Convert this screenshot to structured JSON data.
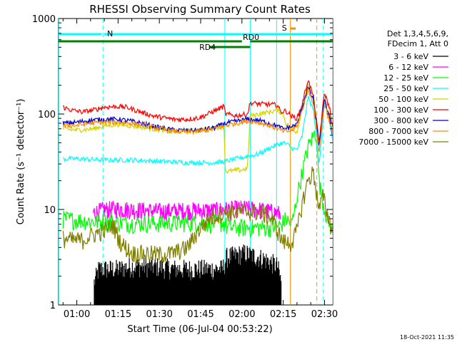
{
  "chart_data": {
    "type": "line",
    "title": "RHESSI Observing Summary Count Rates",
    "xlabel": "Start Time (06-Jul-04 00:53:22)",
    "ylabel": "Count Rate (s⁻¹ detector⁻¹)",
    "yscale": "log",
    "ylim": [
      1,
      1000
    ],
    "xlim": [
      53.37,
      153.0
    ],
    "x_units": "minutes after 00:00 UT",
    "x_ticks": [
      {
        "value": 60,
        "label": "01:00"
      },
      {
        "value": 75,
        "label": "01:15"
      },
      {
        "value": 90,
        "label": "01:30"
      },
      {
        "value": 105,
        "label": "01:45"
      },
      {
        "value": 120,
        "label": "02:00"
      },
      {
        "value": 135,
        "label": "02:15"
      },
      {
        "value": 150,
        "label": "02:30"
      }
    ],
    "y_ticks": [
      {
        "value": 1,
        "label": "1"
      },
      {
        "value": 10,
        "label": "10"
      },
      {
        "value": 100,
        "label": "100"
      },
      {
        "value": 1000,
        "label": "1000"
      }
    ],
    "legend": {
      "header": [
        "Det 1,3,4,5,6,9,",
        "FDecim 1, Att 0"
      ],
      "position": "right"
    },
    "series": [
      {
        "name": "3 - 6 keV",
        "color": "#000000",
        "style": "noisy",
        "x": [
          53.4,
          58.0,
          60.0,
          66.0,
          68.0,
          75.0,
          80.0,
          88.0,
          96.0,
          104.0,
          110.0,
          113.0,
          114.5,
          118.0,
          121.0,
          126.0,
          130.0,
          133.0,
          134.5,
          136.0,
          138.0
        ],
        "y": [
          1.0,
          1.0,
          1.0,
          1.0,
          1.5,
          1.5,
          1.6,
          1.6,
          1.5,
          1.5,
          1.5,
          1.5,
          2.0,
          2.1,
          2.2,
          2.0,
          1.8,
          1.6,
          1.0,
          1.0,
          1.0
        ]
      },
      {
        "name": "6 - 12 keV",
        "color": "#ff00ff",
        "style": "noisy",
        "x": [
          66.0,
          70.0,
          75.0,
          80.0,
          90.0,
          100.0,
          110.0,
          114.0,
          120.0,
          126.0,
          130.0,
          134.0
        ],
        "y": [
          9.2,
          10.0,
          10.2,
          10.0,
          9.6,
          9.8,
          9.8,
          10.0,
          10.3,
          10.0,
          9.6,
          9.0
        ]
      },
      {
        "name": "12 - 25 keV",
        "color": "#00ff00",
        "style": "noisy",
        "x": [
          55.0,
          60.0,
          66.0,
          70.0,
          80.0,
          90.0,
          100.0,
          110.0,
          114.0,
          114.5,
          120.0,
          125.0,
          130.0,
          134.0,
          136.0,
          138.0,
          139.0,
          140.0,
          142.0,
          144.0,
          146.0,
          147.0,
          148.0,
          149.5,
          151.0,
          153.0
        ],
        "y": [
          8.0,
          7.8,
          7.5,
          7.5,
          7.2,
          7.2,
          7.3,
          7.2,
          7.2,
          6.5,
          6.5,
          6.5,
          6.5,
          6.8,
          8.0,
          7.0,
          9.0,
          14.0,
          25.0,
          45.0,
          60.0,
          65.0,
          20.0,
          12.0,
          8.0,
          6.0
        ]
      },
      {
        "name": "25 - 50 keV",
        "color": "#00ffff",
        "style": "noisy",
        "x": [
          55.0,
          60.0,
          70.0,
          80.0,
          90.0,
          100.0,
          105.0,
          110.0,
          114.0,
          116.0,
          120.0,
          126.0,
          130.0,
          133.0,
          135.0,
          137.0,
          138.0,
          140.0,
          142.0,
          144.0,
          146.0,
          148.0,
          150.0,
          152.0,
          153.0
        ],
        "y": [
          34,
          34,
          33,
          33,
          32,
          31,
          31,
          31,
          32,
          33,
          35,
          38,
          44,
          48,
          50,
          47,
          44,
          42,
          60,
          150,
          110,
          30,
          130,
          80,
          50
        ]
      },
      {
        "name": "50 - 100 keV",
        "color": "#d4d400",
        "style": "noisy",
        "x": [
          55.0,
          60.0,
          66.0,
          70.0,
          75.0,
          80.0,
          85.0,
          90.0,
          95.0,
          100.0,
          105.0,
          110.0,
          113.5,
          114.0,
          120.0,
          122.0,
          123.0,
          126.0,
          130.0,
          133.0,
          135.0,
          136.0,
          138.0,
          140.0,
          142.0,
          144.0,
          146.0,
          148.0,
          150.0,
          152.0,
          153.0
        ],
        "y": [
          70,
          68,
          70,
          75,
          78,
          75,
          72,
          68,
          66,
          66,
          68,
          72,
          74,
          25,
          26,
          27,
          95,
          100,
          105,
          110,
          100,
          80,
          70,
          65,
          120,
          200,
          150,
          50,
          140,
          90,
          60
        ]
      },
      {
        "name": "100 - 300 keV",
        "color": "#ff0000",
        "style": "noisy",
        "x": [
          55.0,
          58.0,
          62.0,
          66.0,
          70.0,
          75.0,
          78.0,
          82.0,
          88.0,
          95.0,
          100.0,
          105.0,
          110.0,
          113.5,
          114.0,
          118.0,
          122.0,
          123.0,
          126.0,
          130.0,
          133.0,
          134.0,
          136.0,
          138.0,
          140.0,
          142.0,
          144.0,
          146.0,
          148.0,
          150.0,
          152.0,
          153.0
        ],
        "y": [
          118,
          110,
          105,
          110,
          118,
          120,
          118,
          108,
          95,
          88,
          88,
          92,
          108,
          120,
          100,
          96,
          100,
          130,
          128,
          126,
          124,
          105,
          108,
          95,
          90,
          130,
          230,
          150,
          50,
          170,
          110,
          70
        ]
      },
      {
        "name": "300 - 800 keV",
        "color": "#0000cc",
        "style": "noisy",
        "x": [
          55.0,
          60.0,
          65.0,
          70.0,
          75.0,
          80.0,
          85.0,
          90.0,
          95.0,
          100.0,
          105.0,
          110.0,
          114.0,
          118.0,
          122.0,
          126.0,
          130.0,
          133.0,
          135.0,
          137.0,
          139.0,
          140.0,
          142.0,
          144.0,
          146.0,
          148.0,
          150.0,
          152.0,
          153.0
        ],
        "y": [
          80,
          82,
          86,
          88,
          88,
          84,
          78,
          72,
          68,
          67,
          68,
          72,
          80,
          84,
          88,
          86,
          80,
          74,
          70,
          72,
          75,
          78,
          120,
          190,
          140,
          45,
          140,
          85,
          60
        ]
      },
      {
        "name": "800 - 7000 keV",
        "color": "#ff8c00",
        "style": "noisy",
        "x": [
          55.0,
          60.0,
          65.0,
          70.0,
          75.0,
          80.0,
          85.0,
          90.0,
          95.0,
          100.0,
          105.0,
          110.0,
          114.0,
          118.0,
          122.0,
          126.0,
          130.0,
          133.0,
          135.0,
          137.0,
          139.0,
          140.0,
          142.0,
          144.0,
          146.0,
          148.0,
          150.0,
          152.0,
          153.0
        ],
        "y": [
          75,
          76,
          80,
          82,
          82,
          80,
          76,
          70,
          66,
          65,
          66,
          70,
          76,
          80,
          84,
          82,
          76,
          70,
          66,
          66,
          70,
          75,
          110,
          180,
          130,
          40,
          130,
          80,
          58
        ]
      },
      {
        "name": "7000 - 15000 keV",
        "color": "#808000",
        "style": "noisy",
        "x": [
          55.0,
          58.0,
          62.0,
          66.0,
          70.0,
          73.0,
          76.0,
          80.0,
          85.0,
          90.0,
          95.0,
          100.0,
          105.0,
          108.0,
          112.0,
          116.0,
          120.0,
          125.0,
          128.0,
          131.0,
          133.0,
          134.5,
          136.0,
          138.0,
          140.0,
          142.0,
          144.0,
          146.0,
          148.0,
          149.5,
          151.0,
          153.0
        ],
        "y": [
          5.0,
          4.8,
          4.8,
          5.5,
          6.0,
          7.0,
          4.5,
          3.5,
          3.5,
          3.4,
          3.5,
          4.0,
          6.5,
          8.0,
          9.0,
          9.5,
          9.5,
          9.5,
          9.0,
          8.0,
          6.0,
          4.8,
          4.5,
          4.5,
          6.0,
          12.0,
          20.0,
          25.0,
          10.0,
          14.0,
          9.0,
          6.0
        ]
      }
    ],
    "vertical_markers": [
      {
        "x": 53.4,
        "color": "#00ffff",
        "style": "solid"
      },
      {
        "x": 69.5,
        "color": "#00ffff",
        "style": "dashed"
      },
      {
        "x": 113.8,
        "color": "#00ffff",
        "style": "solid"
      },
      {
        "x": 123.0,
        "color": "#00ffff",
        "style": "solid"
      },
      {
        "x": 132.6,
        "color": "#00ffff",
        "style": "solid"
      },
      {
        "x": 137.6,
        "color": "#ff8c00",
        "style": "solid"
      },
      {
        "x": 147.2,
        "color": "#ff8c00",
        "style": "dashed"
      },
      {
        "x": 149.6,
        "color": "#00ffff",
        "style": "dashed"
      },
      {
        "x": 153.0,
        "color": "#00ffff",
        "style": "solid"
      }
    ],
    "flag_bars": [
      {
        "label": "N",
        "color": "#00ffff",
        "segments": [
          [
            53.4,
            69.0
          ],
          [
            70.0,
            153.0
          ]
        ],
        "level": 0
      },
      {
        "label": "RD0",
        "color": "#008000",
        "segments": [
          [
            53.4,
            120.0
          ],
          [
            123.0,
            153.0
          ]
        ],
        "level": 1
      },
      {
        "label": "RD4",
        "color": "#008000",
        "segments": [
          [
            108.0,
            123.0
          ]
        ],
        "level": 2
      },
      {
        "label": "S",
        "color": "#ff8c00",
        "segments": [
          [
            137.6,
            139.5
          ]
        ],
        "level": -1
      },
      {
        "label": "",
        "color": "#00ffff",
        "segments": [
          [
            132.6,
            153.0
          ]
        ],
        "level": 0
      }
    ]
  },
  "footer": {
    "date": "18-Oct-2021 11:35"
  }
}
